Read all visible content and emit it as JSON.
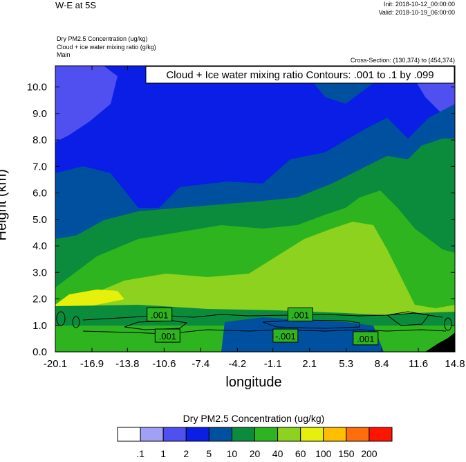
{
  "header": {
    "title": "W-E at 5S",
    "init": "Init: 2018-10-12_00:00:00",
    "valid": "Valid: 2018-10-19_06:00:00",
    "meta_lines": [
      "Dry PM2.5 Concentration   (ug/kg)",
      "Cloud + ice water mixing ratio   (g/kg)",
      "Main"
    ],
    "cross_section": "Cross-Section: (130,374) to (454,374)"
  },
  "chart_data": {
    "type": "heatmap",
    "title": "W-E at 5S",
    "xlabel": "longitude",
    "ylabel": "Height (km)",
    "x_ticks": [
      "-20.1",
      "-16.9",
      "-13.8",
      "-10.6",
      "-7.4",
      "-4.2",
      "-1.1",
      "2.1",
      "5.3",
      "8.4",
      "11.6",
      "14.8"
    ],
    "x_range": [
      -20.1,
      14.8
    ],
    "y_ticks": [
      "0.0",
      "1.0",
      "2.0",
      "3.0",
      "4.0",
      "5.0",
      "6.0",
      "7.0",
      "8.0",
      "9.0",
      "10.0"
    ],
    "y_range": [
      0.0,
      10.8
    ],
    "contour_title": "Cloud + Ice water mixing ratio Contours: .001 to .1 by .099",
    "contour_labels": [
      {
        "text": ".001",
        "x": -11.0,
        "y": 1.4
      },
      {
        "text": ".001",
        "x": -10.3,
        "y": 0.6
      },
      {
        "text": "-.001",
        "x": 0.0,
        "y": 0.6
      },
      {
        "text": ".001",
        "x": 1.3,
        "y": 1.4
      },
      {
        "text": ".001",
        "x": 7.0,
        "y": 0.5
      }
    ],
    "colorbar": {
      "title": "Dry PM2.5 Concentration  (ug/kg)",
      "labels": [
        ".1",
        "1",
        "2",
        "5",
        "10",
        "20",
        "40",
        "60",
        "100",
        "150",
        "200"
      ],
      "colors": [
        "#ffffff",
        "#a0a0f5",
        "#5050f0",
        "#0a1ee6",
        "#0050a0",
        "#0a8c3c",
        "#2db41e",
        "#8cd21e",
        "#e6f00a",
        "#ffbe00",
        "#ff6e0a",
        "#ff1400"
      ]
    },
    "fill_levels": [
      {
        "level": 5,
        "color": "#0a1ee6"
      },
      {
        "level": 10,
        "color": "#0050a0"
      },
      {
        "level": 20,
        "color": "#0a8c3c"
      },
      {
        "level": 40,
        "color": "#2db41e"
      },
      {
        "level": 60,
        "color": "#8cd21e"
      },
      {
        "level": 100,
        "color": "#e6f00a"
      }
    ]
  }
}
